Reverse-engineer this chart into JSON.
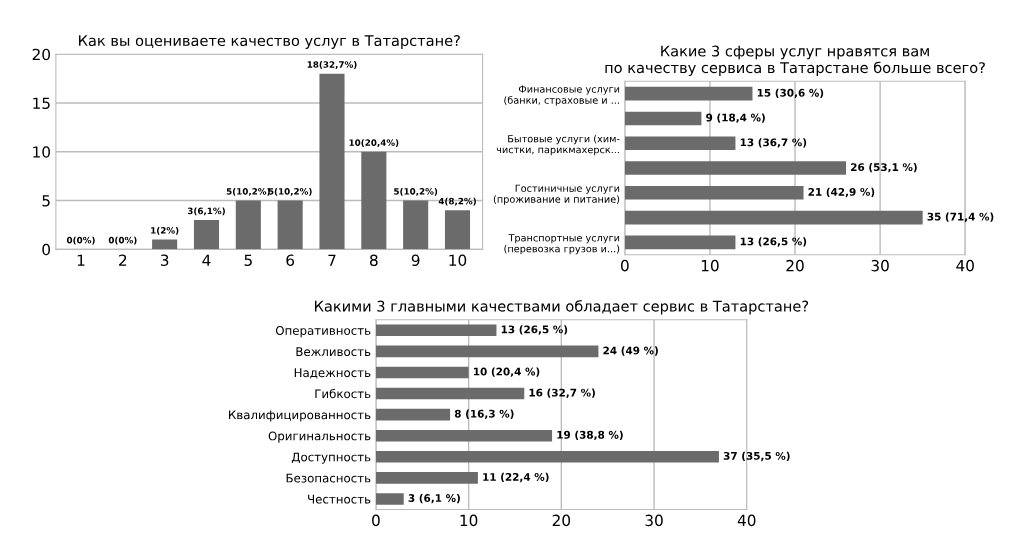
{
  "chart_data": [
    {
      "type": "bar",
      "title": "Как вы оцениваете качество услуг в Татарстане?",
      "categories": [
        "1",
        "2",
        "3",
        "4",
        "5",
        "6",
        "7",
        "8",
        "9",
        "10"
      ],
      "values": [
        0,
        0,
        1,
        3,
        5,
        5,
        18,
        10,
        5,
        4
      ],
      "value_labels": [
        "0(0%)",
        "0(0%)",
        "1(2%)",
        "3(6,1%)",
        "5(10,2%)",
        "5(10,2%)",
        "18(32,7%)",
        "10(20,4%)",
        "5(10,2%)",
        "4(8,2%)"
      ],
      "color": "#6b6b6b",
      "ylim": [
        0,
        20
      ],
      "yticks": [
        0,
        5,
        10,
        15,
        20
      ],
      "grid": "y"
    },
    {
      "type": "bar",
      "orientation": "horizontal",
      "title": "Какие 3 сферы услуг нравятся вам\nпо качеству сервиса в Татарстане больше всего?",
      "categories": [
        "Финансовые услуги\n(банки, страховые и ...",
        null,
        "Бытовые услуги (хим-\nчистки, парикмахерск...",
        null,
        "Гостиничные услуги\n(проживание и питание)",
        null,
        "Транспортные услуги\n(перевозка грузов и...)"
      ],
      "values": [
        15,
        9,
        13,
        26,
        21,
        35,
        13
      ],
      "value_labels": [
        "15 (30,6 %)",
        "9 (18,4 %)",
        "13 (36,7 %)",
        "26 (53,1 %)",
        "21 (42,9 %)",
        "35 (71,4 %)",
        "13 (26,5 %)"
      ],
      "color": "#6b6b6b",
      "xlim": [
        0,
        40
      ],
      "xticks": [
        0,
        10,
        20,
        30,
        40
      ],
      "grid": "x"
    },
    {
      "type": "bar",
      "orientation": "horizontal",
      "title": "Какими 3 главными качествами обладает сервис в Татарстане?",
      "categories": [
        "Оперативность",
        "Вежливость",
        "Надежность",
        "Гибкость",
        "Квалифицированность",
        "Оригинальность",
        "Доступность",
        "Безопасность",
        "Честность"
      ],
      "values": [
        13,
        24,
        10,
        16,
        8,
        19,
        37,
        11,
        3
      ],
      "value_labels": [
        "13 (26,5 %)",
        "24 (49 %)",
        "10 (20,4 %)",
        "16 (32,7 %)",
        "8 (16,3 %)",
        "19 (38,8 %)",
        "37 (35,5 %)",
        "11 (22,4 %)",
        "3 (6,1 %)"
      ],
      "color": "#6b6b6b",
      "xlim": [
        0,
        40
      ],
      "xticks": [
        0,
        10,
        20,
        30,
        40
      ],
      "grid": "x"
    }
  ]
}
